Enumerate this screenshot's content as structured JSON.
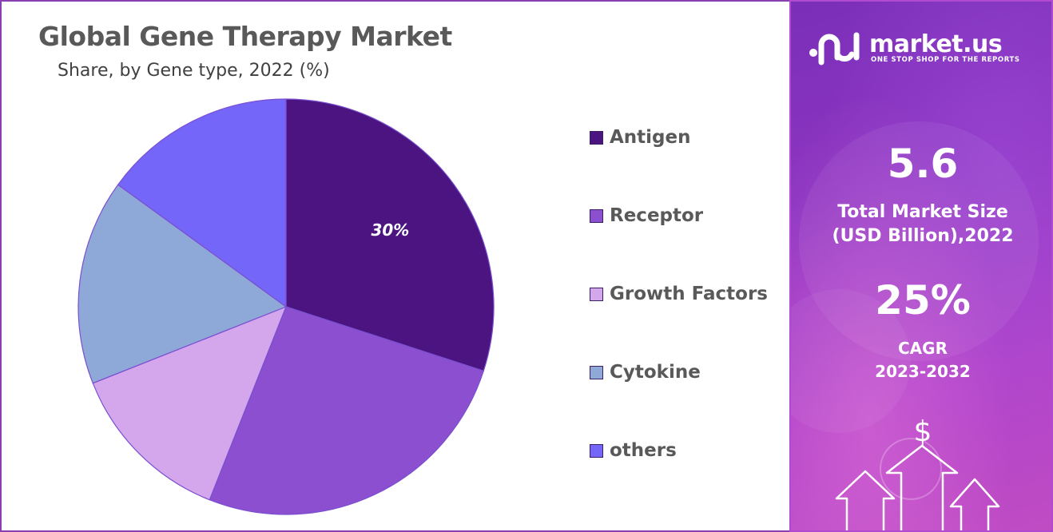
{
  "chart_data": {
    "type": "pie",
    "title": "Global Gene Therapy Market",
    "subtitle": "Share, by Gene type, 2022 (%)",
    "slices": [
      {
        "label": "Antigen",
        "value": 30,
        "color": "#4b1480",
        "data_label": "30%"
      },
      {
        "label": "Receptor",
        "value": 26,
        "color": "#8b4fd0",
        "data_label": ""
      },
      {
        "label": "Growth Factors",
        "value": 13,
        "color": "#d4a6ec",
        "data_label": ""
      },
      {
        "label": "Cytokine",
        "value": 16,
        "color": "#8ea8d8",
        "data_label": ""
      },
      {
        "label": "others",
        "value": 15,
        "color": "#7466f8",
        "data_label": ""
      }
    ],
    "legend_position": "right"
  },
  "sidebar": {
    "brand_name": "market.us",
    "brand_tagline": "ONE STOP SHOP FOR THE REPORTS",
    "market_size_value": "5.6",
    "market_size_label_line1": "Total Market Size",
    "market_size_label_line2": "(USD Billion),2022",
    "cagr_value": "25%",
    "cagr_label_line1": "CAGR",
    "cagr_label_line2": "2023-2032",
    "dollar_icon_text": "$"
  }
}
